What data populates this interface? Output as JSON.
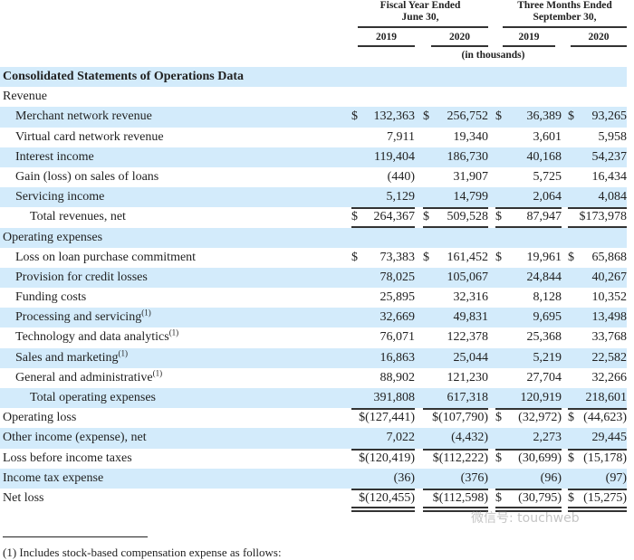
{
  "header": {
    "fiscal_title": [
      "Fiscal Year Ended",
      "June 30,"
    ],
    "three_months_title": [
      "Three Months Ended",
      "September 30,"
    ],
    "years": [
      "2019",
      "2020",
      "2019",
      "2020"
    ],
    "units": "(in thousands)"
  },
  "rows": [
    {
      "label": "Consolidated Statements of Operations Data",
      "indent": 0,
      "bold": true,
      "values": []
    },
    {
      "label": "Revenue",
      "indent": 0,
      "values": []
    },
    {
      "label": "Merchant network revenue",
      "indent": 1,
      "values": [
        "$ 132,363",
        "$ 256,752",
        "$ 36,389",
        "$ 93,265"
      ]
    },
    {
      "label": "Virtual card network revenue",
      "indent": 1,
      "values": [
        "7,911",
        "19,340",
        "3,601",
        "5,958"
      ]
    },
    {
      "label": "Interest income",
      "indent": 1,
      "values": [
        "119,404",
        "186,730",
        "40,168",
        "54,237"
      ]
    },
    {
      "label": "Gain (loss) on sales of loans",
      "indent": 1,
      "values": [
        "(440)",
        "31,907",
        "5,725",
        "16,434"
      ]
    },
    {
      "label": "Servicing income",
      "indent": 1,
      "values": [
        "5,129",
        "14,799",
        "2,064",
        "4,084"
      ],
      "underline": "single"
    },
    {
      "label": "Total revenues, net",
      "indent": 2,
      "values": [
        "$ 264,367",
        "$ 509,528",
        "$ 87,947",
        "$173,978"
      ],
      "underline": "double"
    },
    {
      "label": "Operating expenses",
      "indent": 0,
      "values": []
    },
    {
      "label": "Loss on loan purchase commitment",
      "indent": 1,
      "values": [
        "$ 73,383",
        "$ 161,452",
        "$ 19,961",
        "$ 65,868"
      ]
    },
    {
      "label": "Provision for credit losses",
      "indent": 1,
      "values": [
        "78,025",
        "105,067",
        "24,844",
        "40,267"
      ]
    },
    {
      "label": "Funding costs",
      "indent": 1,
      "values": [
        "25,895",
        "32,316",
        "8,128",
        "10,352"
      ]
    },
    {
      "label": "Processing and servicing",
      "footnote": "(1)",
      "indent": 1,
      "values": [
        "32,669",
        "49,831",
        "9,695",
        "13,498"
      ]
    },
    {
      "label": "Technology and data analytics",
      "footnote": "(1)",
      "indent": 1,
      "values": [
        "76,071",
        "122,378",
        "25,368",
        "33,768"
      ]
    },
    {
      "label": "Sales and marketing",
      "footnote": "(1)",
      "indent": 1,
      "values": [
        "16,863",
        "25,044",
        "5,219",
        "22,582"
      ]
    },
    {
      "label": "General and administrative",
      "footnote": "(1)",
      "indent": 1,
      "values": [
        "88,902",
        "121,230",
        "27,704",
        "32,266"
      ],
      "underline": "single"
    },
    {
      "label": "Total operating expenses",
      "indent": 2,
      "values": [
        "391,808",
        "617,318",
        "120,919",
        "218,601"
      ],
      "underline": "single"
    },
    {
      "label": "Operating loss",
      "indent": 0,
      "values": [
        "$(127,441)",
        "$(107,790)",
        "$ (32,972)",
        "$ (44,623)"
      ]
    },
    {
      "label": "Other income (expense), net",
      "indent": 0,
      "values": [
        "7,022",
        "(4,432)",
        "2,273",
        "29,445"
      ],
      "underline": "single"
    },
    {
      "label": "Loss before income taxes",
      "indent": 0,
      "values": [
        "$(120,419)",
        "$(112,222)",
        "$ (30,699)",
        "$ (15,178)"
      ]
    },
    {
      "label": "Income tax expense",
      "indent": 0,
      "values": [
        "(36)",
        "(376)",
        "(96)",
        "(97)"
      ],
      "underline": "single"
    },
    {
      "label": "Net loss",
      "indent": 0,
      "values": [
        "$(120,455)",
        "$(112,598)",
        "$ (30,795)",
        "$ (15,275)"
      ],
      "underline": "double"
    }
  ],
  "footnote": "(1)   Includes stock-based compensation expense as follows:",
  "watermark": "微信号: touchweb",
  "colors": {
    "row_shade": "#d3ebfb",
    "rule": "#333333"
  }
}
